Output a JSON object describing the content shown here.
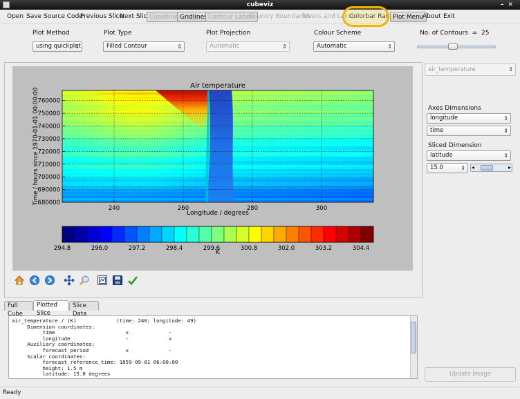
{
  "window": {
    "title": "cubeviz"
  },
  "menu": {
    "items": [
      {
        "label": "Open",
        "state": "normal"
      },
      {
        "label": "Save",
        "state": "normal"
      },
      {
        "label": "Source Code",
        "state": "normal"
      },
      {
        "label": "Previous Slice",
        "state": "normal"
      },
      {
        "label": "Next Slice",
        "state": "normal"
      },
      {
        "label": "Coastlines",
        "state": "disabled-pressed"
      },
      {
        "label": "Gridlines",
        "state": "pressed"
      },
      {
        "label": "Contour Labels",
        "state": "disabled-pressed"
      },
      {
        "label": "Country Boundaries",
        "state": "disabled"
      },
      {
        "label": "Rivers and Lakes",
        "state": "disabled"
      },
      {
        "label": "Colorbar Range",
        "state": "normal"
      },
      {
        "label": "Plot Menu",
        "state": "pressed"
      },
      {
        "label": "About",
        "state": "normal"
      },
      {
        "label": "Exit",
        "state": "normal"
      }
    ]
  },
  "controls": {
    "plot_method": {
      "label": "Plot Method",
      "value": "using quickplot"
    },
    "plot_type": {
      "label": "Plot Type",
      "value": "Filled Contour"
    },
    "plot_projection": {
      "label": "Plot Projection",
      "value": "Automatic"
    },
    "colour_scheme": {
      "label": "Colour Scheme",
      "value": "Automatic"
    },
    "contours": {
      "label": "No. of Contours",
      "eq": "=",
      "value": "25",
      "fraction": 0.45
    }
  },
  "chart_data": {
    "type": "heatmap",
    "title": "Air temperature",
    "xlabel": "Longitude / degrees",
    "ylabel": "Time / hours since 1970-01-01 00:00:00",
    "xlim": [
      225,
      315
    ],
    "ylim": [
      680000,
      768000
    ],
    "xticks": [
      240,
      260,
      280,
      300
    ],
    "yticks": [
      680000,
      690000,
      700000,
      710000,
      720000,
      730000,
      740000,
      750000,
      760000
    ],
    "grid": true,
    "colorbar": {
      "label": "K",
      "min": 294.8,
      "max": 305.6,
      "levels": 25,
      "tick_labels": [
        "294.8",
        "296.0",
        "297.2",
        "298.4",
        "299.6",
        "300.8",
        "302.0",
        "303.2",
        "304.4"
      ],
      "colormap": "jet"
    }
  },
  "toolbar_icons": [
    "home-icon",
    "back-icon",
    "forward-icon",
    "pan-icon",
    "zoom-icon",
    "subplots-icon",
    "save-icon",
    "edit-icon"
  ],
  "tabs": [
    {
      "label": "Full Cube"
    },
    {
      "label": "Plotted Slice"
    },
    {
      "label": "Slice Data"
    }
  ],
  "cube_info": [
    "air_temperature / (K)             (time: 240; longitude: 49)",
    "     Dimension coordinates:",
    "          time                       x             -",
    "          longitude                  -             x",
    "     Auxiliary coordinates:",
    "          forecast_period            x             -",
    "     Scalar coordinates:",
    "          forecast_reference_time: 1859-09-01 06:00:00",
    "          height: 1.5 m",
    "          latitude: 15.0 degrees"
  ],
  "right": {
    "cube_select": "air_temperature",
    "axes_dimensions_label": "Axes Dimensions",
    "axis1": "longitude",
    "axis2": "time",
    "sliced_dimension_label": "Sliced Dimension",
    "slice_dim": "latitude",
    "slice_value": "15.0",
    "update_button": "Update Image"
  },
  "status": "Ready"
}
